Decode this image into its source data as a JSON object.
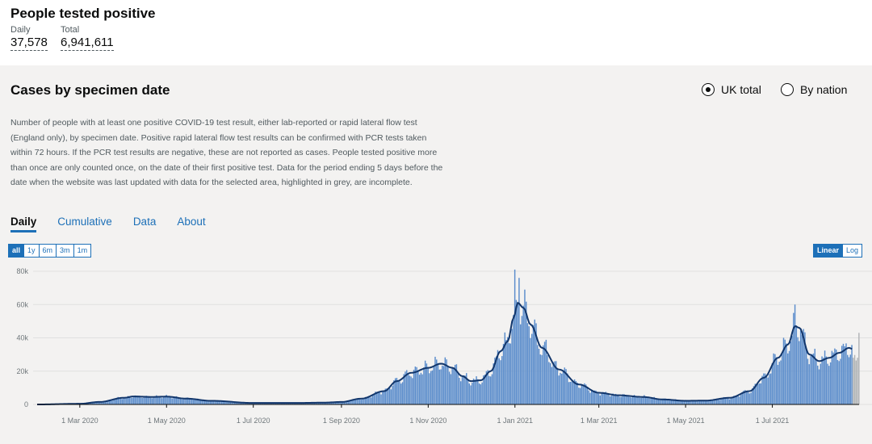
{
  "header": {
    "title": "People tested positive",
    "daily_label": "Daily",
    "daily_value": "37,578",
    "total_label": "Total",
    "total_value": "6,941,611"
  },
  "card": {
    "title": "Cases by specimen date",
    "radio_uk": "UK total",
    "radio_nation": "By nation",
    "selected_radio": "UK total",
    "description": "Number of people with at least one positive COVID-19 test result, either lab-reported or rapid lateral flow test (England only), by specimen date. Positive rapid lateral flow test results can be confirmed with PCR tests taken within 72 hours. If the PCR test results are negative, these are not reported as cases. People tested positive more than once are only counted once, on the date of their first positive test. Data for the period ending 5 days before the date when the website was last updated with data for the selected area, highlighted in grey, are incomplete.",
    "tabs": [
      "Daily",
      "Cumulative",
      "Data",
      "About"
    ],
    "active_tab": "Daily",
    "range_buttons": [
      "all",
      "1y",
      "6m",
      "3m",
      "1m"
    ],
    "active_range": "all",
    "scale_buttons": [
      "Linear",
      "Log"
    ],
    "active_scale": "Linear"
  },
  "colors": {
    "bar": "#5a8ccb",
    "line": "#12366b",
    "incomplete": "#b1b4b6",
    "link": "#1d70b8"
  },
  "chart_data": {
    "type": "bar",
    "overlay": "line (7-day average)",
    "ylim": [
      0,
      80000
    ],
    "y_ticks": [
      0,
      20000,
      40000,
      60000,
      80000
    ],
    "y_tick_labels": [
      "0",
      "20k",
      "40k",
      "60k",
      "80k"
    ],
    "x_ticks": [
      {
        "date": "2020-03-01",
        "label": "1 Mar 2020"
      },
      {
        "date": "2020-05-01",
        "label": "1 May 2020"
      },
      {
        "date": "2020-07-01",
        "label": "1 Jul 2020"
      },
      {
        "date": "2020-09-01",
        "label": "1 Sep 2020"
      },
      {
        "date": "2020-11-01",
        "label": "1 Nov 2020"
      },
      {
        "date": "2021-01-01",
        "label": "1 Jan 2021"
      },
      {
        "date": "2021-03-01",
        "label": "1 Mar 2021"
      },
      {
        "date": "2021-05-01",
        "label": "1 May 2021"
      },
      {
        "date": "2021-07-01",
        "label": "1 Jul 2021"
      }
    ],
    "x_range": [
      "2020-01-31",
      "2021-08-31"
    ],
    "incomplete_period_days": 5,
    "average_series": [
      [
        "2020-01-31",
        0
      ],
      [
        "2020-03-01",
        400
      ],
      [
        "2020-03-15",
        1500
      ],
      [
        "2020-04-01",
        4000
      ],
      [
        "2020-04-08",
        4800
      ],
      [
        "2020-04-20",
        4500
      ],
      [
        "2020-05-01",
        4700
      ],
      [
        "2020-05-15",
        3500
      ],
      [
        "2020-06-01",
        2200
      ],
      [
        "2020-07-01",
        900
      ],
      [
        "2020-08-01",
        900
      ],
      [
        "2020-08-20",
        1100
      ],
      [
        "2020-09-01",
        1500
      ],
      [
        "2020-09-15",
        3500
      ],
      [
        "2020-10-01",
        8000
      ],
      [
        "2020-10-10",
        14000
      ],
      [
        "2020-10-20",
        19000
      ],
      [
        "2020-11-01",
        22000
      ],
      [
        "2020-11-10",
        24500
      ],
      [
        "2020-11-18",
        22000
      ],
      [
        "2020-11-25",
        17000
      ],
      [
        "2020-12-01",
        14000
      ],
      [
        "2020-12-08",
        14500
      ],
      [
        "2020-12-15",
        20000
      ],
      [
        "2020-12-22",
        32000
      ],
      [
        "2020-12-27",
        38000
      ],
      [
        "2020-12-31",
        52000
      ],
      [
        "2021-01-03",
        61000
      ],
      [
        "2021-01-07",
        58000
      ],
      [
        "2021-01-12",
        48000
      ],
      [
        "2021-01-20",
        34000
      ],
      [
        "2021-02-01",
        21000
      ],
      [
        "2021-02-15",
        12000
      ],
      [
        "2021-03-01",
        7000
      ],
      [
        "2021-03-15",
        5500
      ],
      [
        "2021-04-01",
        4500
      ],
      [
        "2021-04-15",
        3000
      ],
      [
        "2021-05-01",
        2200
      ],
      [
        "2021-05-15",
        2300
      ],
      [
        "2021-06-01",
        4000
      ],
      [
        "2021-06-15",
        8000
      ],
      [
        "2021-06-25",
        16000
      ],
      [
        "2021-07-05",
        28000
      ],
      [
        "2021-07-12",
        36000
      ],
      [
        "2021-07-17",
        47000
      ],
      [
        "2021-07-20",
        46000
      ],
      [
        "2021-07-27",
        30000
      ],
      [
        "2021-08-03",
        26000
      ],
      [
        "2021-08-10",
        28000
      ],
      [
        "2021-08-17",
        31000
      ],
      [
        "2021-08-24",
        34000
      ],
      [
        "2021-08-27",
        33000
      ]
    ],
    "notable_daily_values": [
      [
        "2021-01-01",
        81000
      ],
      [
        "2021-01-04",
        76000
      ],
      [
        "2021-07-17",
        60000
      ],
      [
        "2021-08-31",
        43000
      ]
    ]
  }
}
